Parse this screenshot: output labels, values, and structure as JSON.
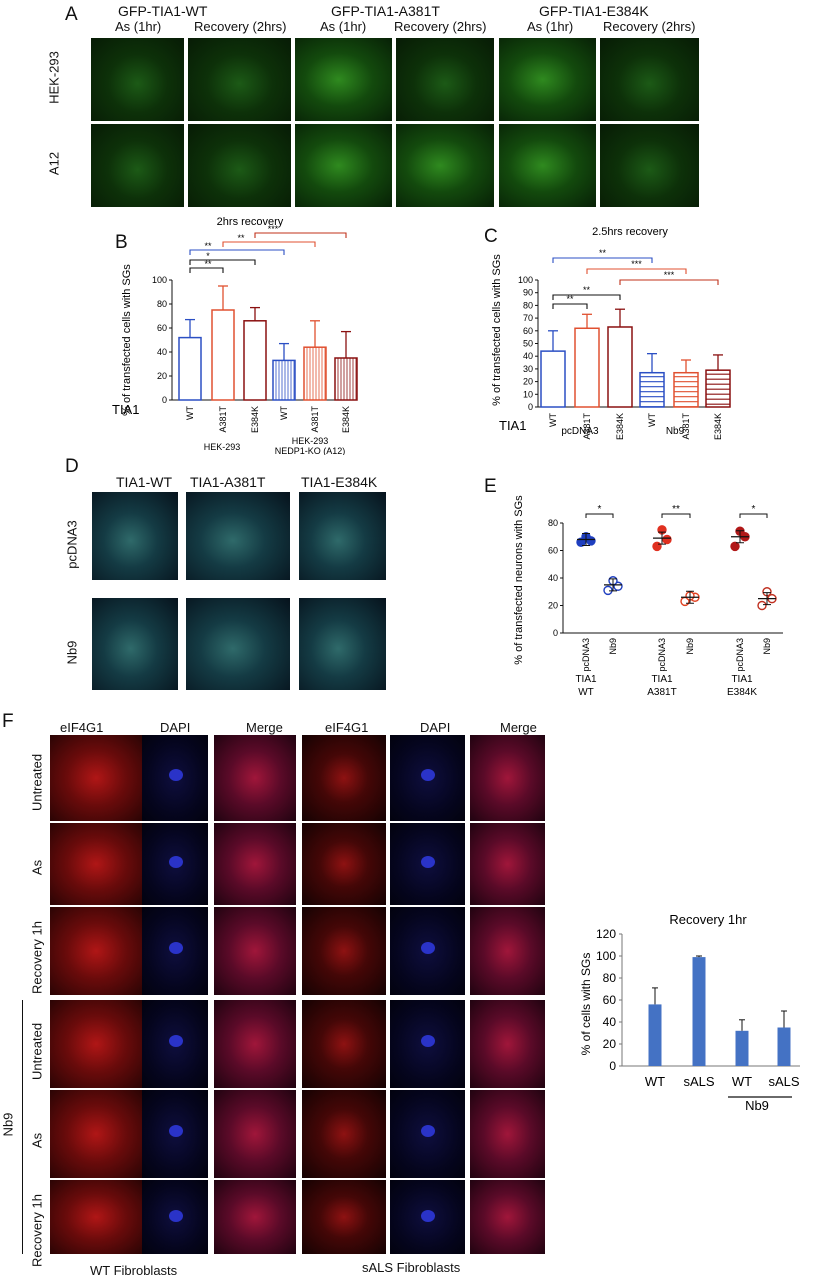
{
  "panelA": {
    "letter": "A",
    "groups": [
      "GFP-TIA1-WT",
      "GFP-TIA1-A381T",
      "GFP-TIA1-E384K"
    ],
    "cols": [
      "As (1hr)",
      "Recovery (2hrs)",
      "As (1hr)",
      "Recovery (2hrs)",
      "As (1hr)",
      "Recovery (2hrs)"
    ],
    "rows": [
      "HEK-293",
      "A12"
    ]
  },
  "panelB": {
    "letter": "B",
    "chart_data": {
      "type": "bar",
      "title": "2hrs recovery",
      "ylabel": "% of transfected cells with SGs",
      "ylim": [
        0,
        100
      ],
      "yticks": [
        0,
        20,
        40,
        60,
        80,
        100
      ],
      "axis_prefix": "TIA1",
      "categories": [
        "WT",
        "A381T",
        "E384K",
        "WT",
        "A381T",
        "E384K"
      ],
      "values": [
        52,
        75,
        66,
        33,
        44,
        35
      ],
      "errors": [
        15,
        20,
        11,
        14,
        22,
        22
      ],
      "group_labels": [
        "HEK-293",
        "HEK-293",
        "NEDP1-KO (A12)"
      ],
      "significance": [
        "**",
        "*",
        "**",
        "**",
        "***"
      ]
    }
  },
  "panelC": {
    "letter": "C",
    "chart_data": {
      "type": "bar",
      "title": "2.5hrs recovery",
      "ylabel": "% of transfected cells with SGs",
      "ylim": [
        0,
        100
      ],
      "yticks": [
        0,
        10,
        20,
        30,
        40,
        50,
        60,
        70,
        80,
        90,
        100
      ],
      "axis_prefix": "TIA1",
      "categories": [
        "WT",
        "A381T",
        "E384K",
        "WT",
        "A381T",
        "E384K"
      ],
      "values": [
        44,
        62,
        63,
        27,
        27,
        29
      ],
      "errors": [
        16,
        11,
        14,
        15,
        10,
        12
      ],
      "group_labels": [
        "pcDNA3",
        "Nb9"
      ],
      "significance": [
        "**",
        "**",
        "**",
        "***",
        "***"
      ]
    }
  },
  "panelD": {
    "letter": "D",
    "cols": [
      "TIA1-WT",
      "TIA1-A381T",
      "TIA1-E384K"
    ],
    "rows": [
      "pcDNA3",
      "Nb9"
    ]
  },
  "panelE": {
    "letter": "E",
    "chart_data": {
      "type": "scatter",
      "ylabel": "% of transfected neurons with SGs",
      "ylim": [
        0,
        80
      ],
      "yticks": [
        0,
        20,
        40,
        60,
        80
      ],
      "categories": [
        "pcDNA3",
        "Nb9",
        "pcDNA3",
        "Nb9",
        "pcDNA3",
        "Nb9"
      ],
      "points": [
        [
          66,
          67,
          70
        ],
        [
          31,
          34,
          38
        ],
        [
          63,
          68,
          75
        ],
        [
          23,
          26,
          27
        ],
        [
          63,
          70,
          74
        ],
        [
          20,
          25,
          30
        ]
      ],
      "means": [
        68,
        35,
        69,
        26,
        70,
        25
      ],
      "group_labels": [
        "TIA1",
        "WT",
        "TIA1",
        "A381T",
        "TIA1",
        "E384K"
      ],
      "significance": [
        "*",
        "**",
        "*"
      ]
    }
  },
  "panelF": {
    "letter": "F",
    "col_labels": [
      "eIF4G1",
      "DAPI",
      "Merge",
      "eIF4G1",
      "DAPI",
      "Merge"
    ],
    "row_labels": [
      "Untreated",
      "As",
      "Recovery 1h",
      "Untreated",
      "As",
      "Recovery 1h"
    ],
    "group_label": "Nb9",
    "bottom_labels": [
      "WT Fibroblasts",
      "sALS Fibroblasts"
    ],
    "chart_data": {
      "type": "bar",
      "title": "Recovery 1hr",
      "ylabel": "% of cells with SGs",
      "ylim": [
        0,
        120
      ],
      "yticks": [
        0,
        20,
        40,
        60,
        80,
        100,
        120
      ],
      "categories": [
        "WT",
        "sALS",
        "WT",
        "sALS"
      ],
      "values": [
        56,
        99,
        32,
        35
      ],
      "errors": [
        15,
        1,
        10,
        15
      ],
      "group_label": "Nb9",
      "color": "#4472c4"
    }
  }
}
